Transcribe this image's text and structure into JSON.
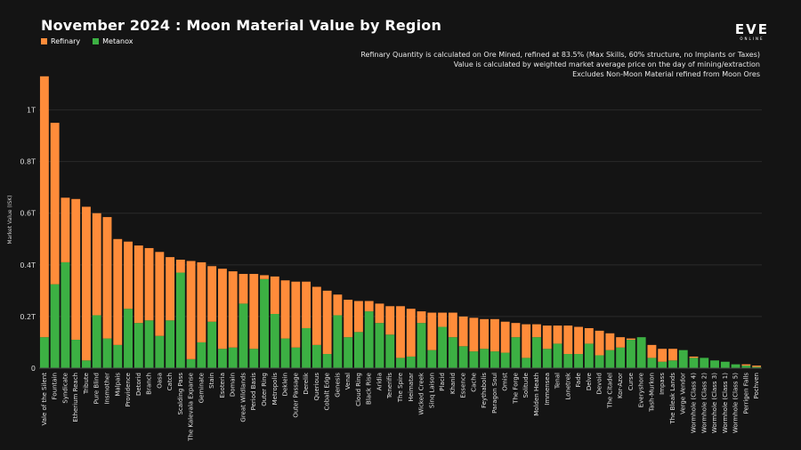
{
  "chart_data": {
    "type": "bar",
    "stacked": true,
    "title": "November 2024 : Moon Material Value by Region",
    "ylabel": "Market Value (ISK)",
    "xlabel": "",
    "ylim": [
      0,
      1150
    ],
    "yticks": [
      {
        "value": 0,
        "label": "0"
      },
      {
        "value": 200,
        "label": "0.2T"
      },
      {
        "value": 400,
        "label": "0.4T"
      },
      {
        "value": 600,
        "label": "0.6T"
      },
      {
        "value": 800,
        "label": "0.8T"
      },
      {
        "value": 1000,
        "label": "1T"
      }
    ],
    "grid": true,
    "legend_placement": "top-left",
    "notes": [
      "Refinary Quantity is calculated on Ore Mined, refined at 83.5% (Max Skills, 60% structure, no Implants or Taxes)",
      "Value is calculated by weighted market average price on the day of mining/extraction",
      "Excludes Non-Moon Material refined from Moon Ores"
    ],
    "categories": [
      "Vale of the Silent",
      "Fountain",
      "Syndicate",
      "Etherium Reach",
      "Tribute",
      "Pure Blind",
      "Insmother",
      "Malpais",
      "Providence",
      "Detorid",
      "Branch",
      "Oasa",
      "Catch",
      "Scalding Pass",
      "The Kalevala Expanse",
      "Geminate",
      "Stain",
      "Esoteria",
      "Domain",
      "Great Wildlands",
      "Period Basis",
      "Outer Ring",
      "Metropolis",
      "Deklein",
      "Outer Passage",
      "Derelik",
      "Querious",
      "Cobalt Edge",
      "Genesis",
      "Venal",
      "Cloud Ring",
      "Black Rise",
      "Aridia",
      "Tenerifis",
      "The Spire",
      "Heimatar",
      "Wicked Creek",
      "Sinq Laison",
      "Placid",
      "Khanid",
      "Essence",
      "Cache",
      "Feythabolis",
      "Paragon Soul",
      "Omist",
      "The Forge",
      "Solitude",
      "Molden Heath",
      "Immensea",
      "Tenal",
      "Lonetrek",
      "Fade",
      "Delve",
      "Devoid",
      "The Citadel",
      "Kor-Azor",
      "Curse",
      "Everyshore",
      "Tash-Murkon",
      "Impass",
      "The Bleak Lands",
      "Verge Vendor",
      "Wormhole (Class 4)",
      "Wormhole (Class 2)",
      "Wormhole (Class 3)",
      "Wormhole (Class 1)",
      "Wormhole (Class 5)",
      "Perrigen Falls",
      "Pochven"
    ],
    "series": [
      {
        "name": "Metanox",
        "color": "#3cb043",
        "values": [
          120,
          325,
          410,
          110,
          30,
          205,
          115,
          90,
          230,
          175,
          185,
          125,
          185,
          370,
          35,
          100,
          180,
          75,
          80,
          250,
          75,
          345,
          210,
          115,
          80,
          155,
          90,
          55,
          205,
          120,
          140,
          220,
          175,
          130,
          40,
          45,
          175,
          70,
          160,
          120,
          85,
          65,
          75,
          65,
          60,
          120,
          40,
          120,
          75,
          95,
          55,
          55,
          95,
          50,
          70,
          80,
          110,
          120,
          40,
          25,
          30,
          70,
          40,
          40,
          30,
          25,
          15,
          10,
          5
        ]
      },
      {
        "name": "Refinary",
        "color": "#ff8c3a",
        "values": [
          1010,
          625,
          250,
          545,
          595,
          395,
          470,
          410,
          260,
          300,
          280,
          325,
          245,
          50,
          380,
          310,
          215,
          310,
          295,
          115,
          290,
          15,
          145,
          225,
          255,
          180,
          225,
          245,
          80,
          145,
          120,
          40,
          75,
          110,
          200,
          185,
          45,
          145,
          55,
          95,
          115,
          130,
          115,
          125,
          120,
          55,
          130,
          50,
          90,
          70,
          110,
          105,
          60,
          95,
          65,
          40,
          5,
          0,
          50,
          50,
          45,
          0,
          5,
          0,
          0,
          0,
          0,
          5,
          5
        ]
      }
    ]
  }
}
